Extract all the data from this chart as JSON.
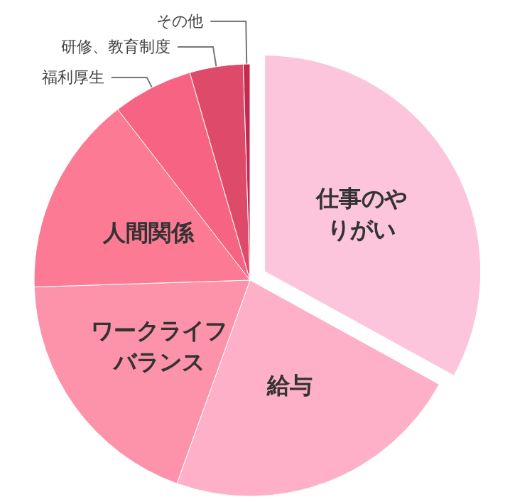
{
  "chart_data": {
    "type": "pie",
    "categories": [
      "仕事のやりがい",
      "給与",
      "ワークライフバランス",
      "人間関係",
      "福利厚生",
      "研修、教育制度",
      "その他"
    ],
    "values": [
      33,
      22.5,
      19,
      15,
      6,
      4,
      0.5
    ],
    "colors": [
      "#fdc5dc",
      "#fdb0c8",
      "#fd93aa",
      "#fc7a93",
      "#f76382",
      "#de4a6a",
      "#c42a4f"
    ],
    "legend": false
  }
}
